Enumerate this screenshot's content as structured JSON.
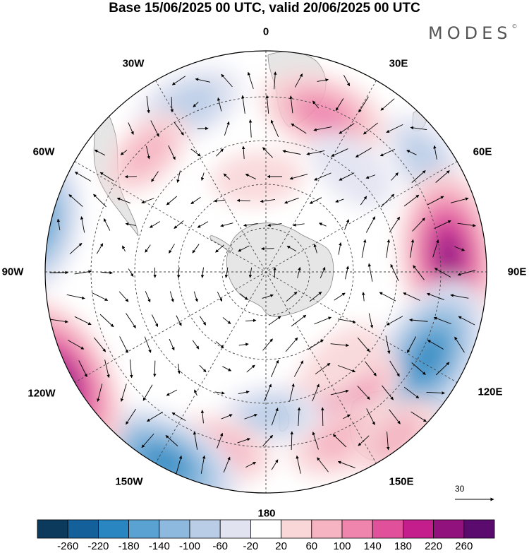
{
  "title": "Base 15/06/2025 00 UTC, valid 20/06/2025 00 UTC",
  "brand": "MODES",
  "brand_mark": "©",
  "longitude_labels": [
    "0",
    "30E",
    "60E",
    "90E",
    "120E",
    "150E",
    "180",
    "150W",
    "120W",
    "90W",
    "60W",
    "30W"
  ],
  "reference_vector": {
    "label": "30"
  },
  "colorbar": {
    "labels": [
      "-260",
      "-220",
      "-180",
      "-140",
      "-100",
      "-60",
      "-20",
      "20",
      "60",
      "100",
      "140",
      "180",
      "220",
      "260"
    ],
    "colors": [
      "#0b3a5c",
      "#14609a",
      "#2a86c1",
      "#5aa2d1",
      "#8db9de",
      "#b9cde7",
      "#e2e3f1",
      "#ffffff",
      "#f9d7d9",
      "#f6b3c1",
      "#ef84ad",
      "#e1509b",
      "#c41e8c",
      "#92127d",
      "#5b0b6e"
    ]
  },
  "anomalies": [
    {
      "lat": -55,
      "lon": 20,
      "value": 130
    },
    {
      "lat": -70,
      "lon": -5,
      "value": 40
    },
    {
      "lat": -52,
      "lon": -25,
      "value": -90
    },
    {
      "lat": -55,
      "lon": -45,
      "value": 60
    },
    {
      "lat": -50,
      "lon": 55,
      "value": -70
    },
    {
      "lat": -62,
      "lon": 40,
      "value": -50
    },
    {
      "lat": -52,
      "lon": 85,
      "value": 220
    },
    {
      "lat": -52,
      "lon": 118,
      "value": -210
    },
    {
      "lat": -60,
      "lon": 150,
      "value": 140
    },
    {
      "lat": -52,
      "lon": 155,
      "value": 90
    },
    {
      "lat": -60,
      "lon": 178,
      "value": -60
    },
    {
      "lat": -52,
      "lon": -165,
      "value": 80
    },
    {
      "lat": -46,
      "lon": -152,
      "value": -190
    },
    {
      "lat": -43,
      "lon": -118,
      "value": 230
    },
    {
      "lat": -43,
      "lon": -78,
      "value": -150
    },
    {
      "lat": -65,
      "lon": 140,
      "value": 50
    },
    {
      "lat": -47,
      "lon": 142,
      "value": 60
    }
  ]
}
